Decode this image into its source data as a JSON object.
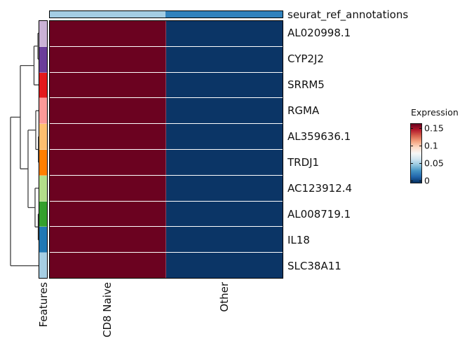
{
  "chart_data": {
    "type": "heatmap",
    "title": "",
    "columns": [
      "CD8 Naive",
      "Other"
    ],
    "rows": [
      "AL020998.1",
      "CYP2J2",
      "SRRM5",
      "RGMA",
      "AL359636.1",
      "TRDJ1",
      "AC123912.4",
      "AL008719.1",
      "IL18",
      "SLC38A11"
    ],
    "values": [
      [
        0.15,
        0
      ],
      [
        0.15,
        0
      ],
      [
        0.15,
        0
      ],
      [
        0.15,
        0
      ],
      [
        0.15,
        0
      ],
      [
        0.15,
        0
      ],
      [
        0.15,
        0
      ],
      [
        0.15,
        0
      ],
      [
        0.15,
        0
      ],
      [
        0.15,
        0
      ]
    ],
    "column_value_colors": [
      "#6b0220",
      "#0b3566"
    ],
    "column_annotation": {
      "label": "seurat_ref_annotations",
      "colors": [
        "#a4cde4",
        "#3182bd"
      ]
    },
    "row_annotation": {
      "label": "Features",
      "colors": [
        "#cab2d6",
        "#6a3d9a",
        "#e31a1c",
        "#fb9a99",
        "#fdbf6f",
        "#ff7f00",
        "#b2df8a",
        "#33a02c",
        "#1f78b4",
        "#a6cee3"
      ]
    },
    "row_dendrogram": {
      "line_color": "#3f3f3f",
      "segments": [
        [
          56,
          47.5,
          54,
          47.5
        ],
        [
          54,
          47.5,
          54,
          84.4
        ],
        [
          56,
          84.4,
          54,
          84.4
        ],
        [
          54,
          65.9,
          48.5,
          65.9
        ],
        [
          48.5,
          65.9,
          48.5,
          121.3
        ],
        [
          56,
          121.3,
          48.5,
          121.3
        ],
        [
          56,
          195.1,
          54.8,
          195.1
        ],
        [
          54.8,
          195.1,
          54.8,
          232
        ],
        [
          56,
          232,
          54.8,
          232
        ],
        [
          56,
          158.2,
          51,
          158.2
        ],
        [
          51,
          158.2,
          51,
          213.5
        ],
        [
          54.8,
          213.5,
          51,
          213.5
        ],
        [
          56,
          305.8,
          54.5,
          305.8
        ],
        [
          54.5,
          305.8,
          54.5,
          342.7
        ],
        [
          56,
          342.7,
          54.5,
          342.7
        ],
        [
          56,
          268.9,
          50,
          268.9
        ],
        [
          50,
          268.9,
          50,
          324.2
        ],
        [
          54.5,
          324.2,
          50,
          324.2
        ],
        [
          51,
          185.9,
          40,
          185.9
        ],
        [
          40,
          185.9,
          40,
          296.5
        ],
        [
          50,
          296.5,
          40,
          296.5
        ],
        [
          48.5,
          93.6,
          29,
          93.6
        ],
        [
          29,
          93.6,
          29,
          241.2
        ],
        [
          40,
          241.2,
          29,
          241.2
        ],
        [
          29,
          167.4,
          15,
          167.4
        ],
        [
          15,
          167.4,
          15,
          379.6
        ],
        [
          56,
          379.6,
          15,
          379.6
        ]
      ]
    },
    "legend": {
      "title": "Expression",
      "ticks": [
        "0.15",
        "0.1",
        "0.05",
        "0"
      ],
      "gradient_stops": [
        "#67001f",
        "#b2182b",
        "#d6604d",
        "#f4a582",
        "#fddbc7",
        "#f7f7f7",
        "#d1e5f0",
        "#92c5de",
        "#4393c3",
        "#2166ac",
        "#053061"
      ]
    },
    "colormap": "RdBu reversed",
    "value_range": [
      0,
      0.15
    ],
    "legend_position": "right",
    "grid": "off"
  }
}
